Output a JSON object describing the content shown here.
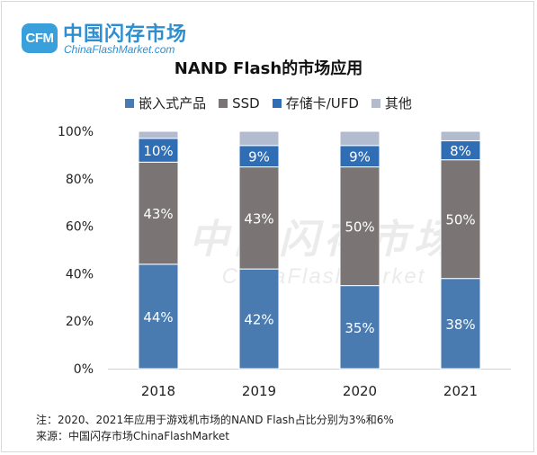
{
  "logo": {
    "badge": "CFM",
    "name_cn": "中国闪存市场",
    "name_en": "ChinaFlashMarket.com"
  },
  "watermark": {
    "cn": "中国闪存市场",
    "en": "ChinaFlashMarket"
  },
  "notes": [
    "注：2020、2021年应用于游戏机市场的NAND Flash占比分别为3%和6%",
    "来源：中国闪存市场ChinaFlashMarket"
  ],
  "chart_data": {
    "type": "bar",
    "stacked": true,
    "title": "NAND Flash的市场应用",
    "xlabel": "",
    "ylabel": "",
    "categories": [
      "2018",
      "2019",
      "2020",
      "2021"
    ],
    "ylim": [
      0,
      100
    ],
    "yticks": [
      "0%",
      "20%",
      "40%",
      "60%",
      "80%",
      "100%"
    ],
    "legend_position": "top",
    "series": [
      {
        "name": "嵌入式产品",
        "color": "#4a7bb0",
        "values": [
          44,
          42,
          35,
          38
        ],
        "labels": [
          "44%",
          "42%",
          "35%",
          "38%"
        ]
      },
      {
        "name": "SSD",
        "color": "#7a7574",
        "values": [
          43,
          43,
          50,
          50
        ],
        "labels": [
          "43%",
          "43%",
          "50%",
          "50%"
        ]
      },
      {
        "name": "存储卡/UFD",
        "color": "#2f6db5",
        "values": [
          10,
          9,
          9,
          8
        ],
        "labels": [
          "10%",
          "9%",
          "9%",
          "8%"
        ]
      },
      {
        "name": "其他",
        "color": "#b3bccf",
        "values": [
          3,
          6,
          6,
          4
        ],
        "labels": [
          "",
          "",
          "",
          ""
        ]
      }
    ]
  }
}
